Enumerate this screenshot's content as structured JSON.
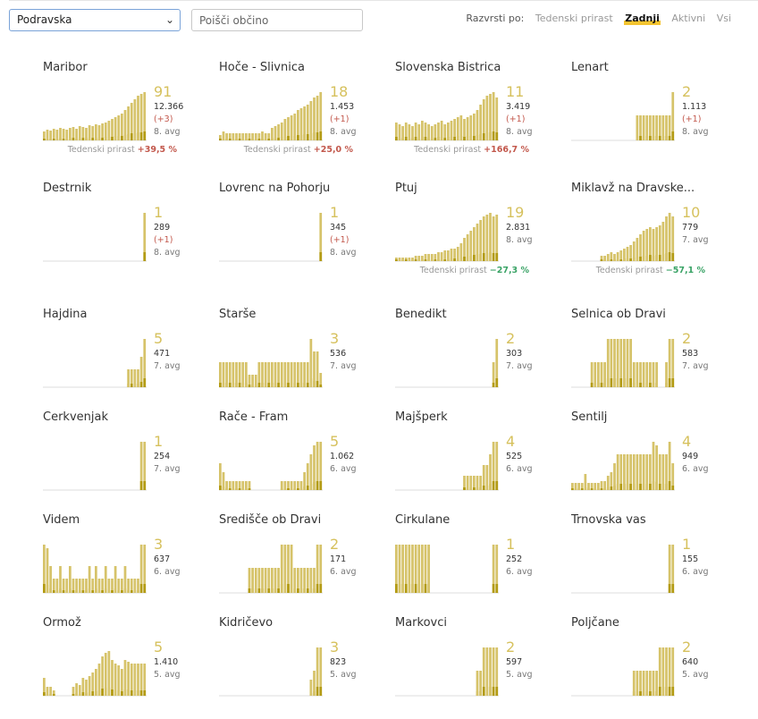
{
  "region_select": {
    "value": "Podravska"
  },
  "search": {
    "placeholder": "Poišči občino"
  },
  "sort": {
    "label": "Razvrsti po:",
    "options": [
      "Tedenski prirast",
      "Zadnji",
      "Aktivni",
      "Vsi"
    ],
    "active": "Zadnji"
  },
  "trend_label": "Tedenski prirast",
  "colors": {
    "light": "#d6c36a",
    "dark": "#b39b14",
    "accent": "#f4c430",
    "up": "#c2574b",
    "down": "#3aa366"
  },
  "municipalities": [
    {
      "name": "Maribor",
      "value": "91",
      "total": "12.366",
      "delta": "(+3)",
      "avg": "8. avg",
      "trend": "+39,5 %",
      "trend_dir": "up",
      "bars": [
        10,
        12,
        11,
        13,
        12,
        14,
        13,
        12,
        14,
        15,
        13,
        16,
        15,
        14,
        17,
        16,
        18,
        17,
        19,
        20,
        22,
        24,
        26,
        28,
        30,
        34,
        38,
        42,
        46,
        50,
        52,
        54
      ]
    },
    {
      "name": "Hoče - Slivnica",
      "value": "18",
      "total": "1.453",
      "delta": "(+1)",
      "avg": "8. avg",
      "trend": "+25,0 %",
      "trend_dir": "up",
      "bars": [
        6,
        10,
        8,
        8,
        8,
        8,
        8,
        8,
        8,
        8,
        8,
        8,
        8,
        10,
        8,
        8,
        14,
        16,
        18,
        20,
        24,
        26,
        28,
        30,
        34,
        36,
        38,
        40,
        44,
        48,
        50,
        54
      ]
    },
    {
      "name": "Slovenska Bistrica",
      "value": "11",
      "total": "3.419",
      "delta": "(+1)",
      "avg": "8. avg",
      "trend": "+166,7 %",
      "trend_dir": "up",
      "bars": [
        20,
        18,
        16,
        20,
        18,
        16,
        20,
        18,
        22,
        20,
        18,
        16,
        18,
        20,
        22,
        18,
        20,
        22,
        24,
        26,
        28,
        24,
        26,
        28,
        30,
        34,
        40,
        46,
        50,
        52,
        54,
        48
      ]
    },
    {
      "name": "Lenart",
      "value": "2",
      "total": "1.113",
      "delta": "(+1)",
      "avg": "8. avg",
      "bars": [
        0,
        0,
        0,
        0,
        0,
        0,
        0,
        0,
        0,
        0,
        0,
        0,
        0,
        0,
        0,
        0,
        0,
        0,
        0,
        0,
        28,
        28,
        28,
        28,
        28,
        28,
        28,
        28,
        28,
        28,
        28,
        54
      ]
    },
    {
      "name": "Destrnik",
      "value": "1",
      "total": "289",
      "delta": "(+1)",
      "avg": "8. avg",
      "bars": [
        0,
        0,
        0,
        0,
        0,
        0,
        0,
        0,
        0,
        0,
        0,
        0,
        0,
        0,
        0,
        0,
        0,
        0,
        0,
        0,
        0,
        0,
        0,
        0,
        0,
        0,
        0,
        0,
        0,
        0,
        0,
        54
      ]
    },
    {
      "name": "Lovrenc na Pohorju",
      "value": "1",
      "total": "345",
      "delta": "(+1)",
      "avg": "8. avg",
      "bars": [
        0,
        0,
        0,
        0,
        0,
        0,
        0,
        0,
        0,
        0,
        0,
        0,
        0,
        0,
        0,
        0,
        0,
        0,
        0,
        0,
        0,
        0,
        0,
        0,
        0,
        0,
        0,
        0,
        0,
        0,
        0,
        54
      ]
    },
    {
      "name": "Ptuj",
      "value": "19",
      "total": "2.831",
      "avg": "8. avg",
      "trend": "−27,3 %",
      "trend_dir": "down",
      "bars": [
        4,
        4,
        4,
        4,
        4,
        4,
        6,
        6,
        6,
        8,
        8,
        8,
        8,
        10,
        10,
        12,
        12,
        14,
        14,
        16,
        20,
        26,
        30,
        34,
        38,
        42,
        46,
        50,
        52,
        54,
        50,
        52
      ]
    },
    {
      "name": "Miklavž na Dravske...",
      "value": "10",
      "total": "779",
      "avg": "7. avg",
      "trend": "−57,1 %",
      "trend_dir": "down",
      "bars": [
        0,
        0,
        0,
        0,
        0,
        0,
        0,
        0,
        0,
        6,
        6,
        8,
        10,
        8,
        10,
        12,
        14,
        16,
        18,
        22,
        26,
        30,
        34,
        36,
        38,
        36,
        38,
        40,
        44,
        50,
        54,
        50
      ]
    },
    {
      "name": "Hajdina",
      "value": "5",
      "total": "471",
      "avg": "7. avg",
      "bars": [
        0,
        0,
        0,
        0,
        0,
        0,
        0,
        0,
        0,
        0,
        0,
        0,
        0,
        0,
        0,
        0,
        0,
        0,
        0,
        0,
        0,
        0,
        0,
        0,
        0,
        0,
        20,
        20,
        20,
        20,
        34,
        54
      ]
    },
    {
      "name": "Starše",
      "value": "3",
      "total": "536",
      "avg": "7. avg",
      "bars": [
        28,
        28,
        28,
        28,
        28,
        28,
        28,
        28,
        28,
        14,
        14,
        14,
        28,
        28,
        28,
        28,
        28,
        28,
        28,
        28,
        28,
        28,
        28,
        28,
        28,
        28,
        28,
        28,
        54,
        40,
        40,
        16
      ]
    },
    {
      "name": "Benedikt",
      "value": "2",
      "total": "303",
      "avg": "7. avg",
      "bars": [
        0,
        0,
        0,
        0,
        0,
        0,
        0,
        0,
        0,
        0,
        0,
        0,
        0,
        0,
        0,
        0,
        0,
        0,
        0,
        0,
        0,
        0,
        0,
        0,
        0,
        0,
        0,
        0,
        0,
        0,
        28,
        54
      ]
    },
    {
      "name": "Selnica ob Dravi",
      "value": "2",
      "total": "583",
      "avg": "7. avg",
      "bars": [
        0,
        0,
        0,
        0,
        0,
        0,
        28,
        28,
        28,
        28,
        28,
        54,
        54,
        54,
        54,
        54,
        54,
        54,
        54,
        28,
        28,
        28,
        28,
        28,
        28,
        28,
        28,
        0,
        0,
        28,
        54,
        54
      ]
    },
    {
      "name": "Cerkvenjak",
      "value": "1",
      "total": "254",
      "avg": "7. avg",
      "bars": [
        0,
        0,
        0,
        0,
        0,
        0,
        0,
        0,
        0,
        0,
        0,
        0,
        0,
        0,
        0,
        0,
        0,
        0,
        0,
        0,
        0,
        0,
        0,
        0,
        0,
        0,
        0,
        0,
        0,
        0,
        54,
        54
      ]
    },
    {
      "name": "Rače - Fram",
      "value": "5",
      "total": "1.062",
      "avg": "6. avg",
      "bars": [
        30,
        20,
        10,
        10,
        10,
        10,
        10,
        10,
        10,
        10,
        0,
        0,
        0,
        0,
        0,
        0,
        0,
        0,
        0,
        10,
        10,
        10,
        10,
        10,
        10,
        10,
        20,
        30,
        40,
        50,
        54,
        54
      ]
    },
    {
      "name": "Majšperk",
      "value": "4",
      "total": "525",
      "avg": "6. avg",
      "bars": [
        0,
        0,
        0,
        0,
        0,
        0,
        0,
        0,
        0,
        0,
        0,
        0,
        0,
        0,
        0,
        0,
        0,
        0,
        0,
        0,
        0,
        16,
        16,
        16,
        16,
        16,
        16,
        28,
        28,
        40,
        54,
        54
      ]
    },
    {
      "name": "Šentilj",
      "value": "4",
      "total": "949",
      "avg": "6. avg",
      "bars": [
        8,
        8,
        8,
        8,
        18,
        8,
        8,
        8,
        8,
        10,
        10,
        16,
        20,
        30,
        40,
        40,
        40,
        40,
        40,
        40,
        40,
        40,
        40,
        40,
        40,
        54,
        50,
        40,
        40,
        40,
        54,
        30
      ]
    },
    {
      "name": "Videm",
      "value": "3",
      "total": "637",
      "avg": "6. avg",
      "bars": [
        54,
        50,
        30,
        16,
        16,
        30,
        16,
        16,
        30,
        16,
        16,
        16,
        16,
        16,
        30,
        16,
        30,
        16,
        16,
        30,
        16,
        16,
        30,
        16,
        16,
        30,
        16,
        16,
        16,
        16,
        54,
        54
      ]
    },
    {
      "name": "Središče ob Dravi",
      "value": "2",
      "total": "171",
      "avg": "6. avg",
      "bars": [
        0,
        0,
        0,
        0,
        0,
        0,
        0,
        0,
        0,
        28,
        28,
        28,
        28,
        28,
        28,
        28,
        28,
        28,
        28,
        54,
        54,
        54,
        54,
        28,
        28,
        28,
        28,
        28,
        28,
        28,
        54,
        54
      ]
    },
    {
      "name": "Cirkulane",
      "value": "1",
      "total": "252",
      "avg": "6. avg",
      "bars": [
        54,
        54,
        54,
        54,
        54,
        54,
        54,
        54,
        54,
        54,
        54,
        0,
        0,
        0,
        0,
        0,
        0,
        0,
        0,
        0,
        0,
        0,
        0,
        0,
        0,
        0,
        0,
        0,
        0,
        0,
        54,
        54
      ]
    },
    {
      "name": "Trnovska vas",
      "value": "1",
      "total": "155",
      "avg": "6. avg",
      "bars": [
        0,
        0,
        0,
        0,
        0,
        0,
        0,
        0,
        0,
        0,
        0,
        0,
        0,
        0,
        0,
        0,
        0,
        0,
        0,
        0,
        0,
        0,
        0,
        0,
        0,
        0,
        0,
        0,
        0,
        0,
        54,
        54
      ]
    },
    {
      "name": "Ormož",
      "value": "5",
      "total": "1.410",
      "avg": "5. avg",
      "bars": [
        20,
        10,
        10,
        6,
        0,
        0,
        0,
        0,
        0,
        10,
        14,
        12,
        20,
        18,
        22,
        26,
        30,
        36,
        44,
        48,
        50,
        40,
        36,
        34,
        30,
        40,
        38,
        36,
        36,
        36,
        36,
        36
      ]
    },
    {
      "name": "Kidričevo",
      "value": "3",
      "total": "823",
      "avg": "5. avg",
      "bars": [
        0,
        0,
        0,
        0,
        0,
        0,
        0,
        0,
        0,
        0,
        0,
        0,
        0,
        0,
        0,
        0,
        0,
        0,
        0,
        0,
        0,
        0,
        0,
        0,
        0,
        0,
        0,
        0,
        18,
        28,
        54,
        54
      ]
    },
    {
      "name": "Markovci",
      "value": "2",
      "total": "597",
      "avg": "5. avg",
      "bars": [
        0,
        0,
        0,
        0,
        0,
        0,
        0,
        0,
        0,
        0,
        0,
        0,
        0,
        0,
        0,
        0,
        0,
        0,
        0,
        0,
        0,
        0,
        0,
        0,
        0,
        28,
        28,
        54,
        54,
        54,
        54,
        54
      ]
    },
    {
      "name": "Poljčane",
      "value": "2",
      "total": "640",
      "avg": "5. avg",
      "bars": [
        0,
        0,
        0,
        0,
        0,
        0,
        0,
        0,
        0,
        0,
        0,
        0,
        0,
        0,
        0,
        0,
        0,
        0,
        0,
        28,
        28,
        28,
        28,
        28,
        28,
        28,
        28,
        54,
        54,
        54,
        54,
        54
      ]
    }
  ]
}
